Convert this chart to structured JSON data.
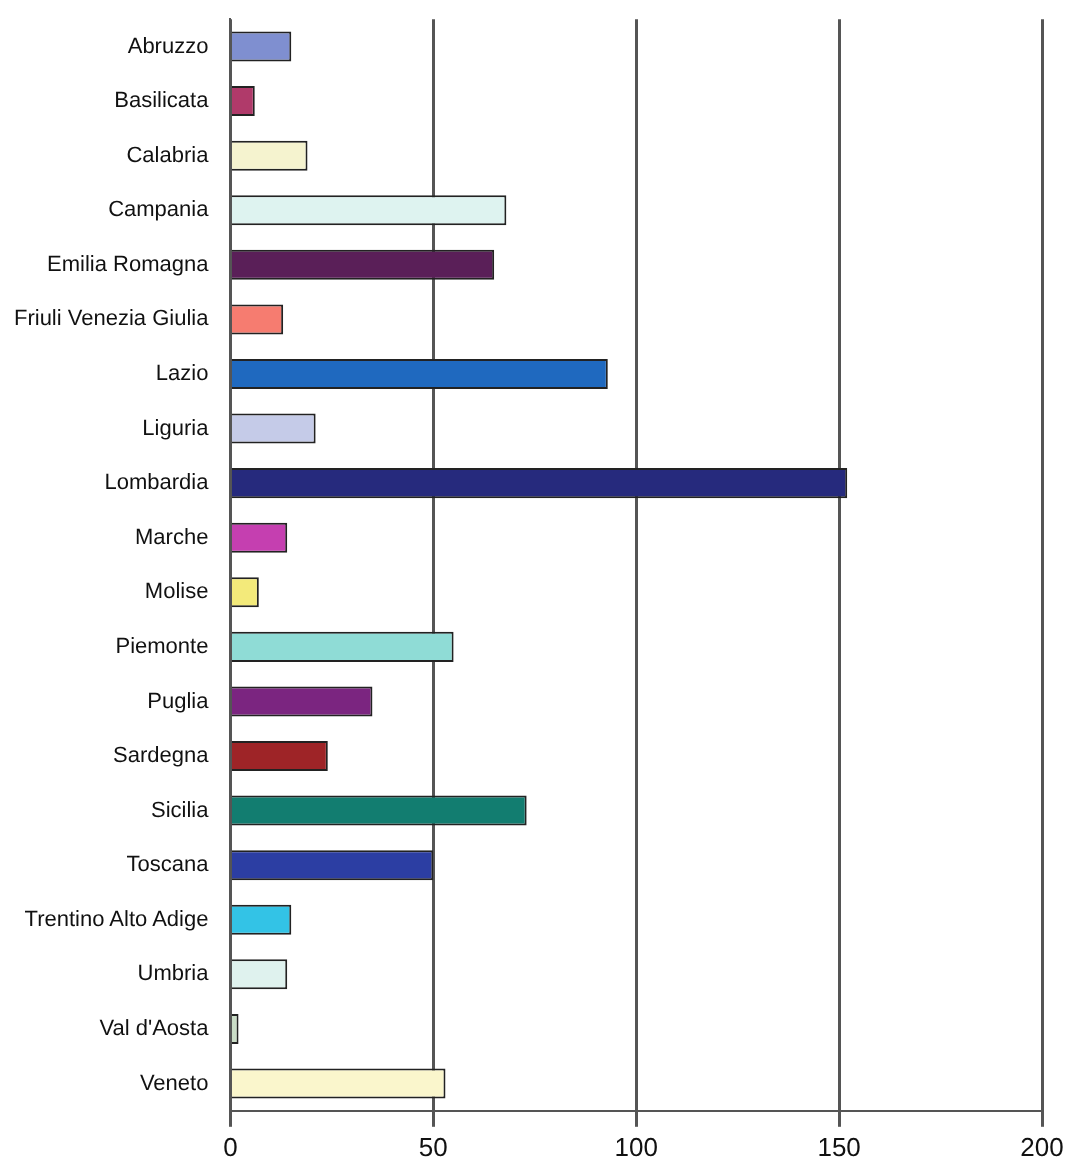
{
  "chart_data": {
    "type": "bar",
    "orientation": "horizontal",
    "categories": [
      "Abruzzo",
      "Basilicata",
      "Calabria",
      "Campania",
      "Emilia Romagna",
      "Friuli Venezia Giulia",
      "Lazio",
      "Liguria",
      "Lombardia",
      "Marche",
      "Molise",
      "Piemonte",
      "Puglia",
      "Sardegna",
      "Sicilia",
      "Toscana",
      "Trentino Alto Adige",
      "Umbria",
      "Val d'Aosta",
      "Veneto"
    ],
    "values": [
      15,
      6,
      19,
      68,
      65,
      13,
      93,
      21,
      152,
      14,
      7,
      55,
      35,
      24,
      73,
      50,
      15,
      14,
      2,
      53
    ],
    "colors": [
      "#7f8fd0",
      "#b03a6a",
      "#f5f3cf",
      "#def3f0",
      "#5a1f58",
      "#f67c70",
      "#1f69bf",
      "#c5cbe8",
      "#262a7d",
      "#c53fb0",
      "#f3ea7a",
      "#8fdcd6",
      "#7b2580",
      "#9e2427",
      "#127d70",
      "#2c3ea3",
      "#33c3e6",
      "#dff2ee",
      "#c9dcc6",
      "#faf6cc"
    ],
    "xlim": [
      0,
      200
    ],
    "xticks": [
      0,
      50,
      100,
      150,
      200
    ],
    "grid": "x",
    "legend": false
  }
}
